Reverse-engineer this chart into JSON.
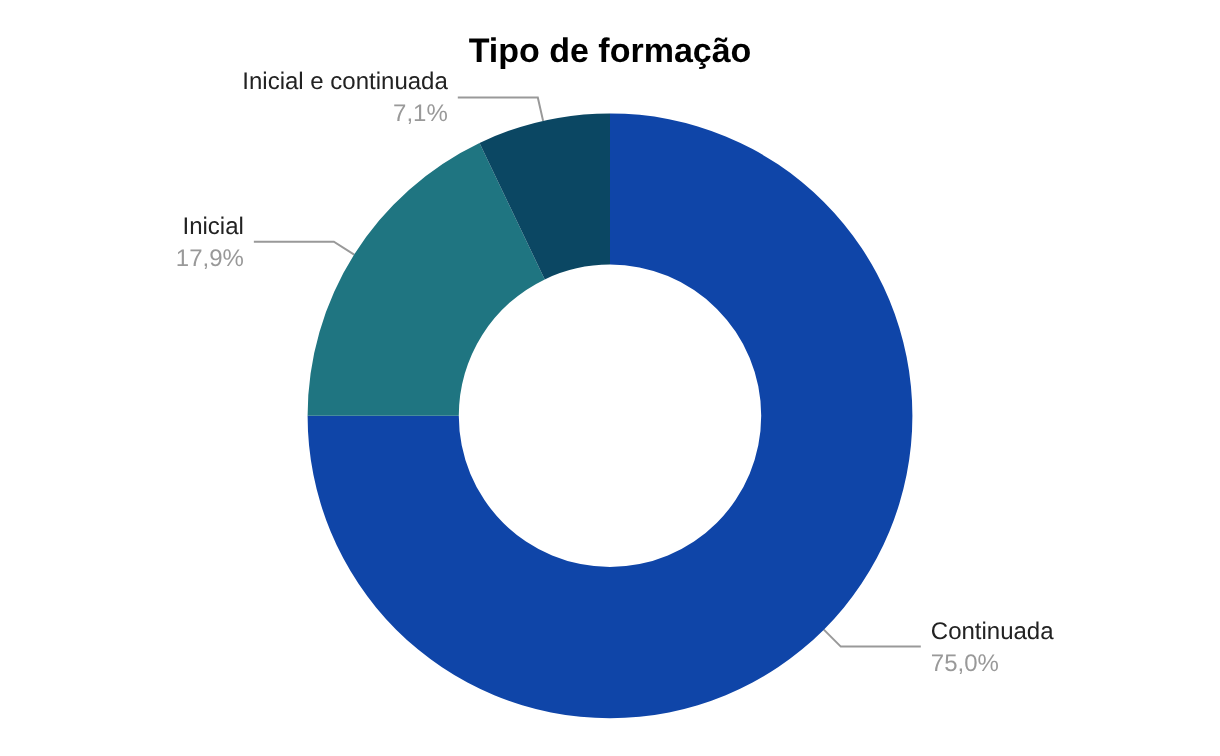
{
  "chart_data": {
    "type": "donut",
    "title": "Tipo de formação",
    "categories": [
      "Continuada",
      "Inicial",
      "Inicial e continuada"
    ],
    "values": [
      75.0,
      17.9,
      7.1
    ],
    "colors": [
      "#0f45a8",
      "#1f7581",
      "#0b4763"
    ],
    "value_labels": [
      "75,0%",
      "17,9%",
      "7,1%"
    ]
  }
}
